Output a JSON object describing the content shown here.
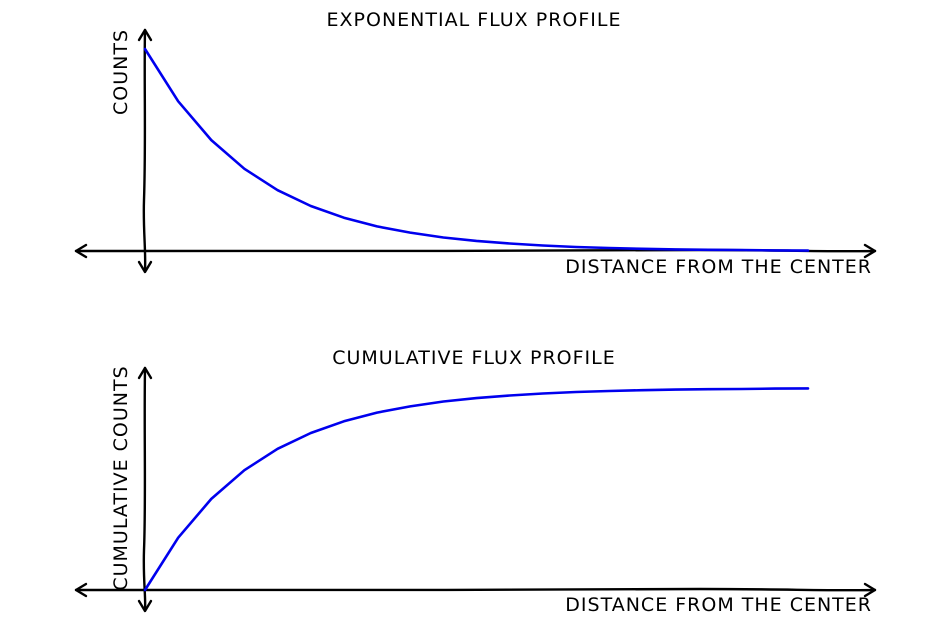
{
  "colors": {
    "curve": "#0000ee",
    "axis": "#000000",
    "background": "#ffffff"
  },
  "chart_data": [
    {
      "type": "line",
      "title": "EXPONENTIAL FLUX PROFILE",
      "xlabel": "DISTANCE FROM THE CENTER",
      "ylabel": "COUNTS",
      "grid": false,
      "xlim": [
        0,
        1
      ],
      "ylim": [
        0,
        1
      ],
      "series": [
        {
          "x": [
            0,
            0.05,
            0.1,
            0.15,
            0.2,
            0.25,
            0.3,
            0.35,
            0.4,
            0.45,
            0.5,
            0.55,
            0.6,
            0.65,
            0.7,
            0.75,
            0.8,
            0.85,
            0.9,
            0.95,
            1.0
          ],
          "y": [
            1.0,
            0.741,
            0.549,
            0.407,
            0.301,
            0.223,
            0.165,
            0.122,
            0.091,
            0.067,
            0.05,
            0.037,
            0.027,
            0.02,
            0.015,
            0.011,
            0.008,
            0.006,
            0.005,
            0.003,
            0.002
          ],
          "color": "#0000ee"
        }
      ]
    },
    {
      "type": "line",
      "title": "CUMULATIVE FLUX PROFILE",
      "xlabel": "DISTANCE FROM THE CENTER",
      "ylabel": "CUMULATIVE COUNTS",
      "grid": false,
      "xlim": [
        0,
        1
      ],
      "ylim": [
        0,
        1
      ],
      "series": [
        {
          "x": [
            0,
            0.05,
            0.1,
            0.15,
            0.2,
            0.25,
            0.3,
            0.35,
            0.4,
            0.45,
            0.5,
            0.55,
            0.6,
            0.65,
            0.7,
            0.75,
            0.8,
            0.85,
            0.9,
            0.95,
            1.0
          ],
          "y": [
            0.0,
            0.259,
            0.451,
            0.593,
            0.699,
            0.777,
            0.835,
            0.878,
            0.909,
            0.933,
            0.95,
            0.963,
            0.973,
            0.98,
            0.985,
            0.989,
            0.992,
            0.994,
            0.995,
            0.997,
            0.998
          ],
          "color": "#0000ee"
        }
      ]
    }
  ]
}
